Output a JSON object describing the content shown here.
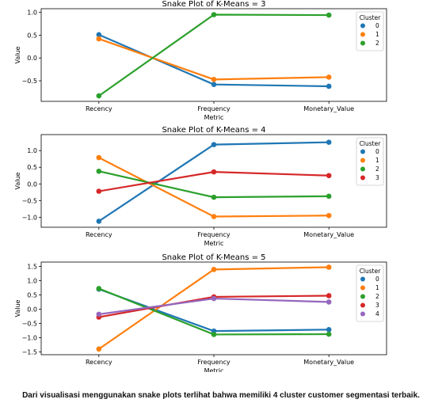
{
  "chart_data": [
    {
      "type": "line",
      "title": "Snake Plot of K-Means = 3",
      "xlabel": "Metric",
      "ylabel": "Value",
      "categories": [
        "Recency",
        "Frequency",
        "Monetary_Value"
      ],
      "ylim": [
        -0.95,
        1.08
      ],
      "yticks": [
        "1.0",
        "0.5",
        "0.0",
        "−0.5"
      ],
      "ytick_values": [
        1.0,
        0.5,
        0.0,
        -0.5
      ],
      "legend": {
        "title": "Cluster",
        "position": "top-right"
      },
      "series": [
        {
          "name": "0",
          "color": "#1f77b4",
          "values": [
            0.51,
            -0.58,
            -0.62
          ]
        },
        {
          "name": "1",
          "color": "#ff7f0e",
          "values": [
            0.42,
            -0.47,
            -0.42
          ]
        },
        {
          "name": "2",
          "color": "#2ca02c",
          "values": [
            -0.83,
            0.95,
            0.94
          ]
        }
      ]
    },
    {
      "type": "line",
      "title": "Snake Plot of K-Means = 4",
      "xlabel": "Metric",
      "ylabel": "Value",
      "categories": [
        "Recency",
        "Frequency",
        "Monetary_Value"
      ],
      "ylim": [
        -1.3,
        1.48
      ],
      "yticks": [
        "1.0",
        "0.5",
        "0.0",
        "−0.5",
        "−1.0"
      ],
      "ytick_values": [
        1.0,
        0.5,
        0.0,
        -0.5,
        -1.0
      ],
      "legend": {
        "title": "Cluster",
        "position": "top-right"
      },
      "series": [
        {
          "name": "0",
          "color": "#1f77b4",
          "values": [
            -1.12,
            1.18,
            1.25
          ]
        },
        {
          "name": "1",
          "color": "#ff7f0e",
          "values": [
            0.79,
            -0.98,
            -0.95
          ]
        },
        {
          "name": "2",
          "color": "#2ca02c",
          "values": [
            0.38,
            -0.4,
            -0.37
          ]
        },
        {
          "name": "3",
          "color": "#d62728",
          "values": [
            -0.22,
            0.36,
            0.25
          ]
        }
      ]
    },
    {
      "type": "line",
      "title": "Snake Plot of K-Means = 5",
      "xlabel": "Metric",
      "ylabel": "Value",
      "categories": [
        "Recency",
        "Frequency",
        "Monetary_Value"
      ],
      "ylim": [
        -1.6,
        1.65
      ],
      "yticks": [
        "1.5",
        "1.0",
        "0.5",
        "0.0",
        "−0.5",
        "−1.0",
        "−1.5"
      ],
      "ytick_values": [
        1.5,
        1.0,
        0.5,
        0.0,
        -0.5,
        -1.0,
        -1.5
      ],
      "legend": {
        "title": "Cluster",
        "position": "top-right"
      },
      "series": [
        {
          "name": "0",
          "color": "#1f77b4",
          "values": [
            0.7,
            -0.77,
            -0.72
          ]
        },
        {
          "name": "1",
          "color": "#ff7f0e",
          "values": [
            -1.4,
            1.39,
            1.47
          ]
        },
        {
          "name": "2",
          "color": "#2ca02c",
          "values": [
            0.72,
            -0.89,
            -0.88
          ]
        },
        {
          "name": "3",
          "color": "#d62728",
          "values": [
            -0.28,
            0.43,
            0.47
          ]
        },
        {
          "name": "4",
          "color": "#9467bd",
          "values": [
            -0.18,
            0.37,
            0.25
          ]
        }
      ]
    }
  ],
  "caption": "Dari visualisasi menggunakan snake plots terlihat bahwa memiliki 4 cluster customer segmentasi terbaik."
}
